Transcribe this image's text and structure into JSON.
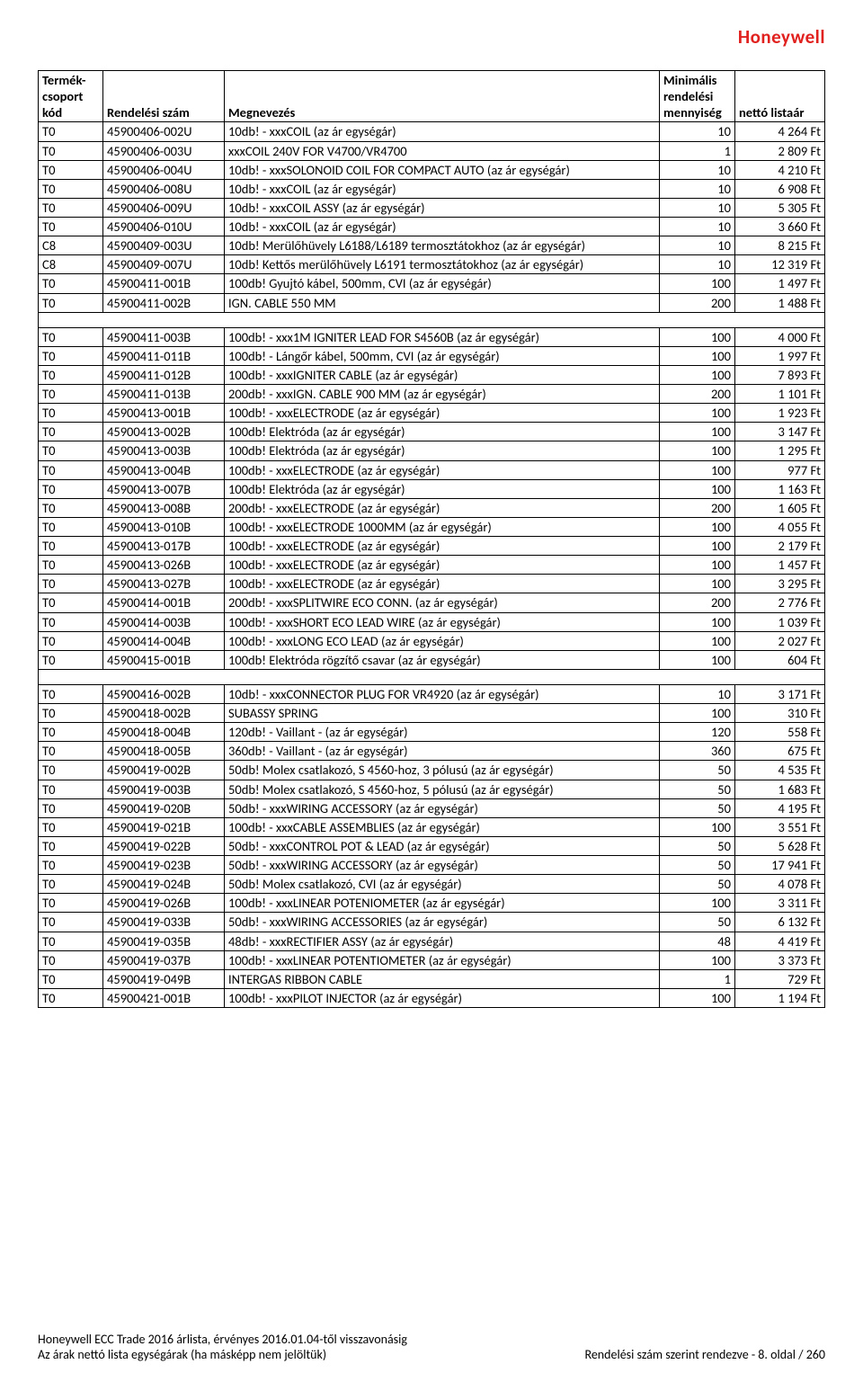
{
  "brand": "Honeywell",
  "columns": {
    "kod": "Termék-csoport kód",
    "rend": "Rendelési szám",
    "meg": "Megnevezés",
    "min": "Minimális rendelési mennyiség",
    "ar": "nettó listaár"
  },
  "rows_a": [
    [
      "T0",
      "45900406-002U",
      "10db! - xxxCOIL (az ár egységár)",
      "10",
      "4 264 Ft"
    ],
    [
      "T0",
      "45900406-003U",
      "xxxCOIL 240V FOR V4700/VR4700",
      "1",
      "2 809 Ft"
    ],
    [
      "T0",
      "45900406-004U",
      "10db! - xxxSOLONOID COIL FOR COMPACT AUTO (az ár egységár)",
      "10",
      "4 210 Ft"
    ],
    [
      "T0",
      "45900406-008U",
      "10db! - xxxCOIL (az ár egységár)",
      "10",
      "6 908 Ft"
    ],
    [
      "T0",
      "45900406-009U",
      "10db! - xxxCOIL ASSY (az ár egységár)",
      "10",
      "5 305 Ft"
    ],
    [
      "T0",
      "45900406-010U",
      "10db! - xxxCOIL (az ár egységár)",
      "10",
      "3 660 Ft"
    ],
    [
      "C8",
      "45900409-003U",
      "10db! Merülőhüvely L6188/L6189 termosztátokhoz (az ár egységár)",
      "10",
      "8 215 Ft"
    ],
    [
      "C8",
      "45900409-007U",
      "10db! Kettős merülőhüvely L6191 termosztátokhoz (az ár egységár)",
      "10",
      "12 319 Ft"
    ],
    [
      "T0",
      "45900411-001B",
      "100db! Gyujtó kábel,  500mm, CVI (az ár egységár)",
      "100",
      "1 497 Ft"
    ],
    [
      "T0",
      "45900411-002B",
      "IGN. CABLE 550 MM",
      "200",
      "1 488 Ft"
    ]
  ],
  "rows_b": [
    [
      "T0",
      "45900411-003B",
      "100db! - xxx1M IGNITER LEAD FOR S4560B (az ár egységár)",
      "100",
      "4 000 Ft"
    ],
    [
      "T0",
      "45900411-011B",
      "100db! - Lángőr kábel, 500mm,  CVI (az ár egységár)",
      "100",
      "1 997 Ft"
    ],
    [
      "T0",
      "45900411-012B",
      "100db! - xxxIGNITER CABLE (az ár egységár)",
      "100",
      "7 893 Ft"
    ],
    [
      "T0",
      "45900411-013B",
      "200db! - xxxIGN. CABLE 900 MM (az ár egységár)",
      "200",
      "1 101 Ft"
    ],
    [
      "T0",
      "45900413-001B",
      "100db! - xxxELECTRODE (az ár egységár)",
      "100",
      "1 923 Ft"
    ],
    [
      "T0",
      "45900413-002B",
      "100db! Elektróda (az ár egységár)",
      "100",
      "3 147 Ft"
    ],
    [
      "T0",
      "45900413-003B",
      "100db! Elektróda (az ár egységár)",
      "100",
      "1 295 Ft"
    ],
    [
      "T0",
      "45900413-004B",
      "100db! - xxxELECTRODE (az ár egységár)",
      "100",
      "977 Ft"
    ],
    [
      "T0",
      "45900413-007B",
      "100db! Elektróda (az ár egységár)",
      "100",
      "1 163 Ft"
    ],
    [
      "T0",
      "45900413-008B",
      "200db! - xxxELECTRODE (az ár egységár)",
      "200",
      "1 605 Ft"
    ],
    [
      "T0",
      "45900413-010B",
      "100db! - xxxELECTRODE 1000MM (az ár egységár)",
      "100",
      "4 055 Ft"
    ],
    [
      "T0",
      "45900413-017B",
      "100db! - xxxELECTRODE (az ár egységár)",
      "100",
      "2 179 Ft"
    ],
    [
      "T0",
      "45900413-026B",
      "100db! - xxxELECTRODE (az ár egységár)",
      "100",
      "1 457 Ft"
    ],
    [
      "T0",
      "45900413-027B",
      "100db! - xxxELECTRODE (az ár egységár)",
      "100",
      "3 295 Ft"
    ],
    [
      "T0",
      "45900414-001B",
      "200db! - xxxSPLITWIRE ECO CONN. (az ár egységár)",
      "200",
      "2 776 Ft"
    ],
    [
      "T0",
      "45900414-003B",
      "100db! - xxxSHORT ECO LEAD WIRE (az ár egységár)",
      "100",
      "1 039 Ft"
    ],
    [
      "T0",
      "45900414-004B",
      "100db! - xxxLONG ECO LEAD (az ár egységár)",
      "100",
      "2 027 Ft"
    ],
    [
      "T0",
      "45900415-001B",
      "100db! Elektróda rögzítő csavar (az ár egységár)",
      "100",
      "604 Ft"
    ]
  ],
  "rows_c": [
    [
      "T0",
      "45900416-002B",
      "10db! - xxxCONNECTOR PLUG FOR VR4920 (az ár egységár)",
      "10",
      "3 171 Ft"
    ],
    [
      "T0",
      "45900418-002B",
      "SUBASSY SPRING",
      "100",
      "310 Ft"
    ],
    [
      "T0",
      "45900418-004B",
      "120db! - Vaillant - (az ár egységár)",
      "120",
      "558 Ft"
    ],
    [
      "T0",
      "45900418-005B",
      "360db! - Vaillant - (az ár egységár)",
      "360",
      "675 Ft"
    ],
    [
      "T0",
      "45900419-002B",
      "50db! Molex csatlakozó, S 4560-hoz,  3 pólusú (az ár egységár)",
      "50",
      "4 535 Ft"
    ],
    [
      "T0",
      "45900419-003B",
      "50db! Molex csatlakozó, S 4560-hoz, 5 pólusú (az ár egységár)",
      "50",
      "1 683 Ft"
    ],
    [
      "T0",
      "45900419-020B",
      "50db! - xxxWIRING ACCESSORY (az ár egységár)",
      "50",
      "4 195 Ft"
    ],
    [
      "T0",
      "45900419-021B",
      "100db! - xxxCABLE ASSEMBLIES (az ár egységár)",
      "100",
      "3 551 Ft"
    ],
    [
      "T0",
      "45900419-022B",
      "50db! - xxxCONTROL POT & LEAD (az ár egységár)",
      "50",
      "5 628 Ft"
    ],
    [
      "T0",
      "45900419-023B",
      "50db! - xxxWIRING ACCESSORY (az ár egységár)",
      "50",
      "17 941 Ft"
    ],
    [
      "T0",
      "45900419-024B",
      "50db! Molex csatlakozó, CVI (az ár egységár)",
      "50",
      "4 078 Ft"
    ],
    [
      "T0",
      "45900419-026B",
      "100db! - xxxLINEAR POTENIOMETER (az ár egységár)",
      "100",
      "3 311 Ft"
    ],
    [
      "T0",
      "45900419-033B",
      "50db! - xxxWIRING ACCESSORIES (az ár egységár)",
      "50",
      "6 132 Ft"
    ],
    [
      "T0",
      "45900419-035B",
      "48db! - xxxRECTIFIER ASSY (az ár egységár)",
      "48",
      "4 419 Ft"
    ],
    [
      "T0",
      "45900419-037B",
      "100db! - xxxLINEAR POTENTIOMETER (az ár egységár)",
      "100",
      "3 373 Ft"
    ],
    [
      "T0",
      "45900419-049B",
      "INTERGAS RIBBON CABLE",
      "1",
      "729 Ft"
    ],
    [
      "T0",
      "45900421-001B",
      "100db! - xxxPILOT INJECTOR (az ár egységár)",
      "100",
      "1 194 Ft"
    ]
  ],
  "footer": {
    "left1": "Honeywell ECC Trade 2016 árlista, érvényes 2016.01.04-től visszavonásig",
    "left2": "Az árak nettó lista egységárak (ha másképp nem jelöltük)",
    "right": "Rendelési szám szerint rendezve - 8. oldal / 260"
  }
}
